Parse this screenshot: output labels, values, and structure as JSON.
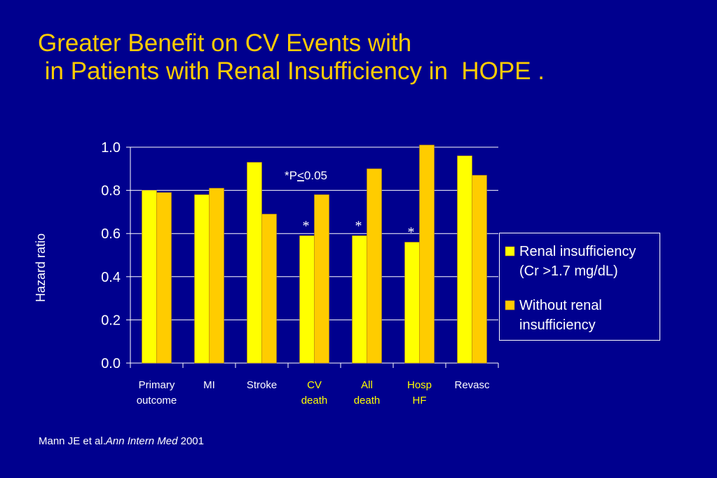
{
  "slide": {
    "title_line1": "Greater Benefit on CV Events with",
    "title_line2": " in Patients with Renal Insufficiency in  HOPE .",
    "reference_authors": "Mann JE et al.",
    "reference_journal": "Ann Intern Med",
    "reference_year": " 2001"
  },
  "colors": {
    "background": "#00008e",
    "title": "#ffcc00",
    "series1": "#ffff00",
    "series2": "#ffcc00",
    "highlight_label": "#ffff00",
    "text": "#ffffff"
  },
  "chart_data": {
    "type": "bar",
    "ylabel": "Hazard ratio",
    "ylim": [
      0,
      1.0
    ],
    "yticks": [
      "0.0",
      "0.2",
      "0.4",
      "0.6",
      "0.8",
      "1.0"
    ],
    "grid": true,
    "categories": [
      [
        "Primary",
        "outcome"
      ],
      [
        "MI"
      ],
      [
        "Stroke"
      ],
      [
        "CV",
        "death"
      ],
      [
        "All",
        "death"
      ],
      [
        "Hosp",
        "HF"
      ],
      [
        "Revasc"
      ]
    ],
    "highlighted_categories": [
      3,
      4,
      5
    ],
    "series": [
      {
        "name": "Renal insufficiency (Cr >1.7 mg/dL)",
        "legend_lines": [
          "Renal insufficiency",
          "(Cr >1.7 mg/dL)"
        ],
        "values": [
          0.8,
          0.78,
          0.93,
          0.59,
          0.59,
          0.56,
          0.96
        ]
      },
      {
        "name": "Without renal insufficiency",
        "legend_lines": [
          "Without renal",
          "insufficiency"
        ],
        "values": [
          0.79,
          0.81,
          0.69,
          0.78,
          0.9,
          1.01,
          0.87
        ]
      }
    ],
    "significance_marker": "*",
    "significant_categories": [
      3,
      4,
      5
    ],
    "annotation": {
      "prefix": "*P",
      "underlined": "<",
      "suffix": "0.05"
    },
    "legend_placement": "right"
  }
}
